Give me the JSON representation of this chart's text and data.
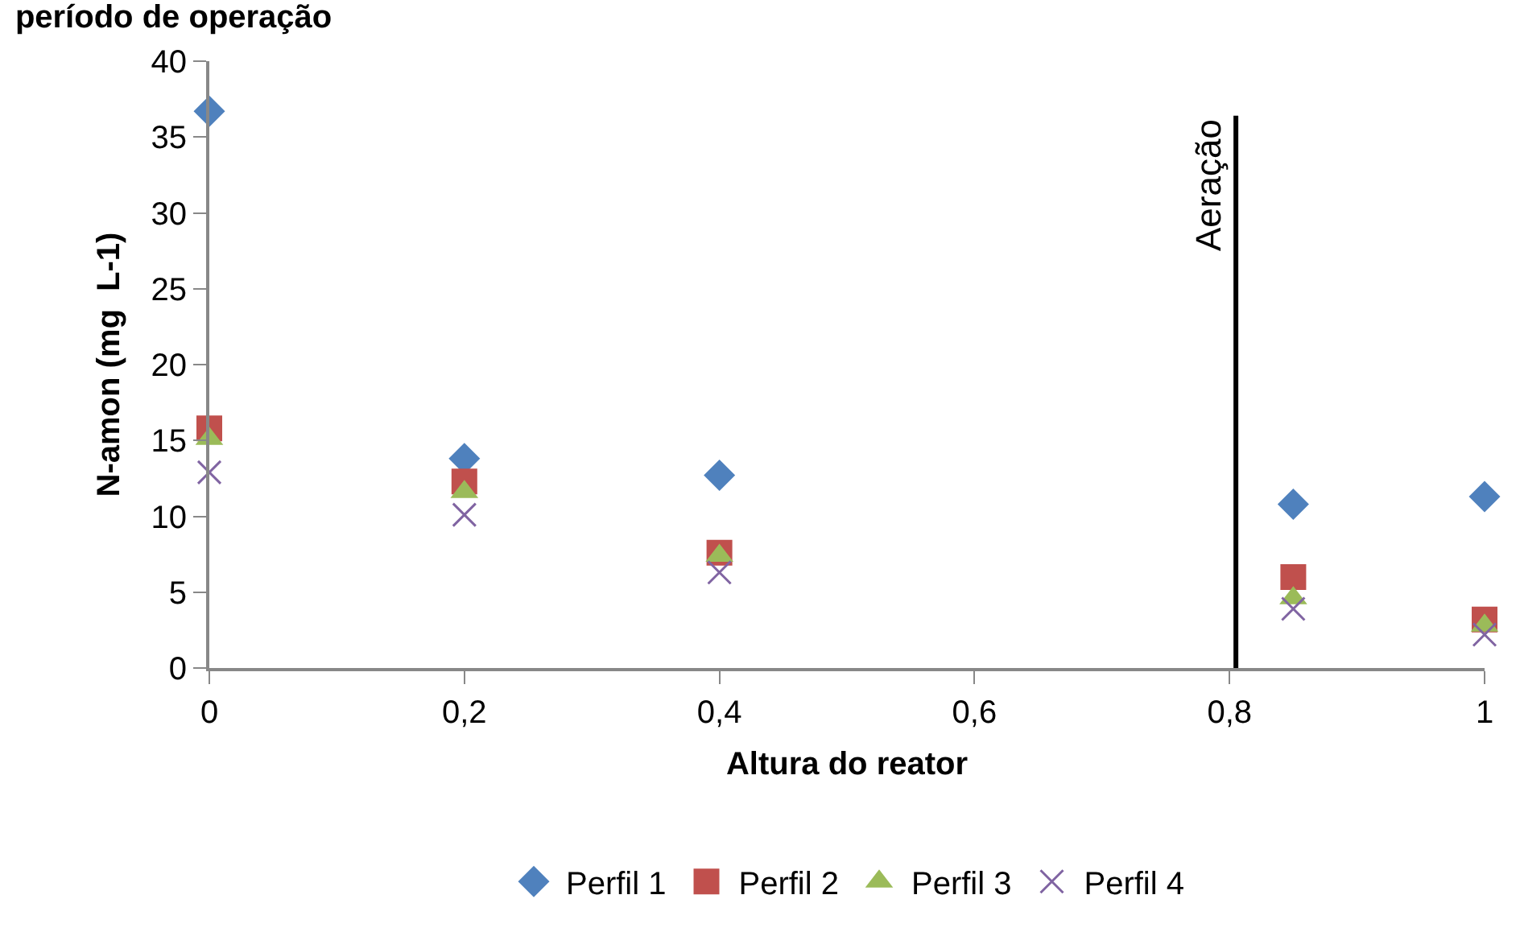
{
  "chart_data": {
    "type": "scatter",
    "title": "período de operação",
    "xlabel": "Altura do reator",
    "ylabel": "N-amon (mg  L-1)",
    "x": [
      0,
      0.2,
      0.4,
      0.85,
      1
    ],
    "series": [
      {
        "name": "Perfil 1",
        "color": "#4f81bd",
        "marker": "diamond",
        "values": [
          36.7,
          13.8,
          12.7,
          10.8,
          11.3
        ]
      },
      {
        "name": "Perfil 2",
        "color": "#c0504d",
        "marker": "square",
        "values": [
          15.8,
          12.3,
          7.6,
          6.0,
          3.2
        ]
      },
      {
        "name": "Perfil 3",
        "color": "#9bbb59",
        "marker": "triangle",
        "values": [
          15.1,
          11.6,
          7.4,
          4.6,
          2.8
        ]
      },
      {
        "name": "Perfil 4",
        "color": "#8064a2",
        "marker": "cross",
        "values": [
          12.9,
          10.1,
          6.3,
          3.9,
          2.2
        ]
      }
    ],
    "xlim": [
      0,
      1
    ],
    "xticks": [
      {
        "value": 0,
        "label": "0"
      },
      {
        "value": 0.2,
        "label": "0,2"
      },
      {
        "value": 0.4,
        "label": "0,4"
      },
      {
        "value": 0.6,
        "label": "0,6"
      },
      {
        "value": 0.8,
        "label": "0,8"
      },
      {
        "value": 1,
        "label": "1"
      }
    ],
    "ylim": [
      0,
      40
    ],
    "yticks": [
      0,
      5,
      10,
      15,
      20,
      25,
      30,
      35,
      40
    ],
    "ref_lines": [
      {
        "axis": "x",
        "value": 0.805,
        "label": "Aeração",
        "color": "#000000"
      }
    ],
    "grid": false,
    "legend": "bottom"
  }
}
